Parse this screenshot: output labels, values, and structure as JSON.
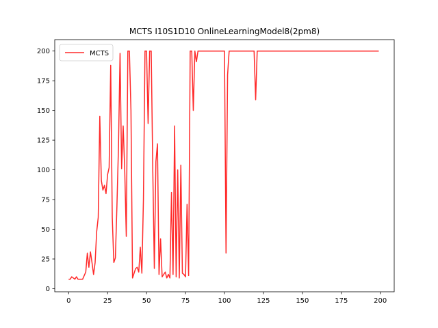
{
  "chart_data": {
    "type": "line",
    "title": "MCTS I10S1D10 OnlineLearningModel8(2pm8)",
    "xlabel": "",
    "ylabel": "",
    "xlim": [
      -8.9,
      208.9
    ],
    "ylim": [
      -2.6,
      209.6
    ],
    "x_ticks": [
      0,
      25,
      50,
      75,
      100,
      125,
      150,
      175,
      200
    ],
    "y_ticks": [
      0,
      25,
      50,
      75,
      100,
      125,
      150,
      175,
      200
    ],
    "grid": false,
    "legend_position": "top-left",
    "series": [
      {
        "name": "MCTS",
        "color": "#ff2a2a",
        "x": [
          0,
          1,
          2,
          3,
          4,
          5,
          6,
          7,
          8,
          9,
          10,
          11,
          12,
          13,
          14,
          15,
          16,
          17,
          18,
          19,
          20,
          21,
          22,
          23,
          24,
          25,
          26,
          27,
          28,
          29,
          30,
          31,
          32,
          33,
          34,
          35,
          36,
          37,
          38,
          39,
          40,
          41,
          42,
          43,
          44,
          45,
          46,
          47,
          48,
          49,
          50,
          51,
          52,
          53,
          54,
          55,
          56,
          57,
          58,
          59,
          60,
          61,
          62,
          63,
          64,
          65,
          66,
          67,
          68,
          69,
          70,
          71,
          72,
          73,
          74,
          75,
          76,
          77,
          78,
          79,
          80,
          81,
          82,
          83,
          84,
          85,
          86,
          87,
          88,
          89,
          90,
          91,
          92,
          93,
          94,
          95,
          96,
          97,
          98,
          99,
          100,
          101,
          102,
          103,
          104,
          105,
          106,
          107,
          108,
          109,
          110,
          111,
          112,
          113,
          114,
          115,
          116,
          117,
          118,
          119,
          120,
          121,
          122,
          123,
          124,
          125,
          126,
          127,
          128,
          129,
          130,
          131,
          132,
          133,
          134,
          135,
          136,
          137,
          138,
          139,
          140,
          141,
          142,
          143,
          144,
          145,
          146,
          147,
          148,
          149,
          150,
          151,
          152,
          153,
          154,
          155,
          156,
          157,
          158,
          159,
          160,
          161,
          162,
          163,
          164,
          165,
          166,
          167,
          168,
          169,
          170,
          171,
          172,
          173,
          174,
          175,
          176,
          177,
          178,
          179,
          180,
          181,
          182,
          183,
          184,
          185,
          186,
          187,
          188,
          189,
          190,
          191,
          192,
          193,
          194,
          195,
          196,
          197,
          198,
          199
        ],
        "values": [
          8,
          8,
          10,
          9,
          8,
          10,
          8,
          8,
          8,
          8,
          11,
          14,
          30,
          18,
          31,
          22,
          12,
          22,
          48,
          60,
          145,
          91,
          83,
          87,
          80,
          96,
          102,
          188,
          60,
          22,
          26,
          70,
          120,
          198,
          101,
          137,
          100,
          44,
          200,
          200,
          150,
          9,
          13,
          17,
          18,
          14,
          35,
          13,
          75,
          200,
          200,
          139,
          200,
          200,
          100,
          17,
          107,
          122,
          12,
          42,
          10,
          12,
          14,
          9,
          12,
          9,
          81,
          12,
          137,
          10,
          100,
          9,
          104,
          13,
          12,
          10,
          71,
          11,
          200,
          200,
          150,
          200,
          191,
          200,
          200,
          200,
          200,
          200,
          200,
          200,
          200,
          200,
          200,
          200,
          200,
          200,
          200,
          200,
          200,
          200,
          200,
          30,
          180,
          200,
          200,
          200,
          200,
          200,
          200,
          200,
          200,
          200,
          200,
          200,
          200,
          200,
          200,
          200,
          200,
          200,
          159,
          200,
          200,
          200,
          200,
          200,
          200,
          200,
          200,
          200,
          200,
          200,
          200,
          200,
          200,
          200,
          200,
          200,
          200,
          200,
          200,
          200,
          200,
          200,
          200,
          200,
          200,
          200,
          200,
          200,
          200,
          200,
          200,
          200,
          200,
          200,
          200,
          200,
          200,
          200,
          200,
          200,
          200,
          200,
          200,
          200,
          200,
          200,
          200,
          200,
          200,
          200,
          200,
          200,
          200,
          200,
          200,
          200,
          200,
          200,
          200,
          200,
          200,
          200,
          200,
          200,
          200,
          200,
          200,
          200,
          200,
          200,
          200,
          200,
          200,
          200,
          200,
          200,
          200,
          200
        ]
      }
    ]
  }
}
